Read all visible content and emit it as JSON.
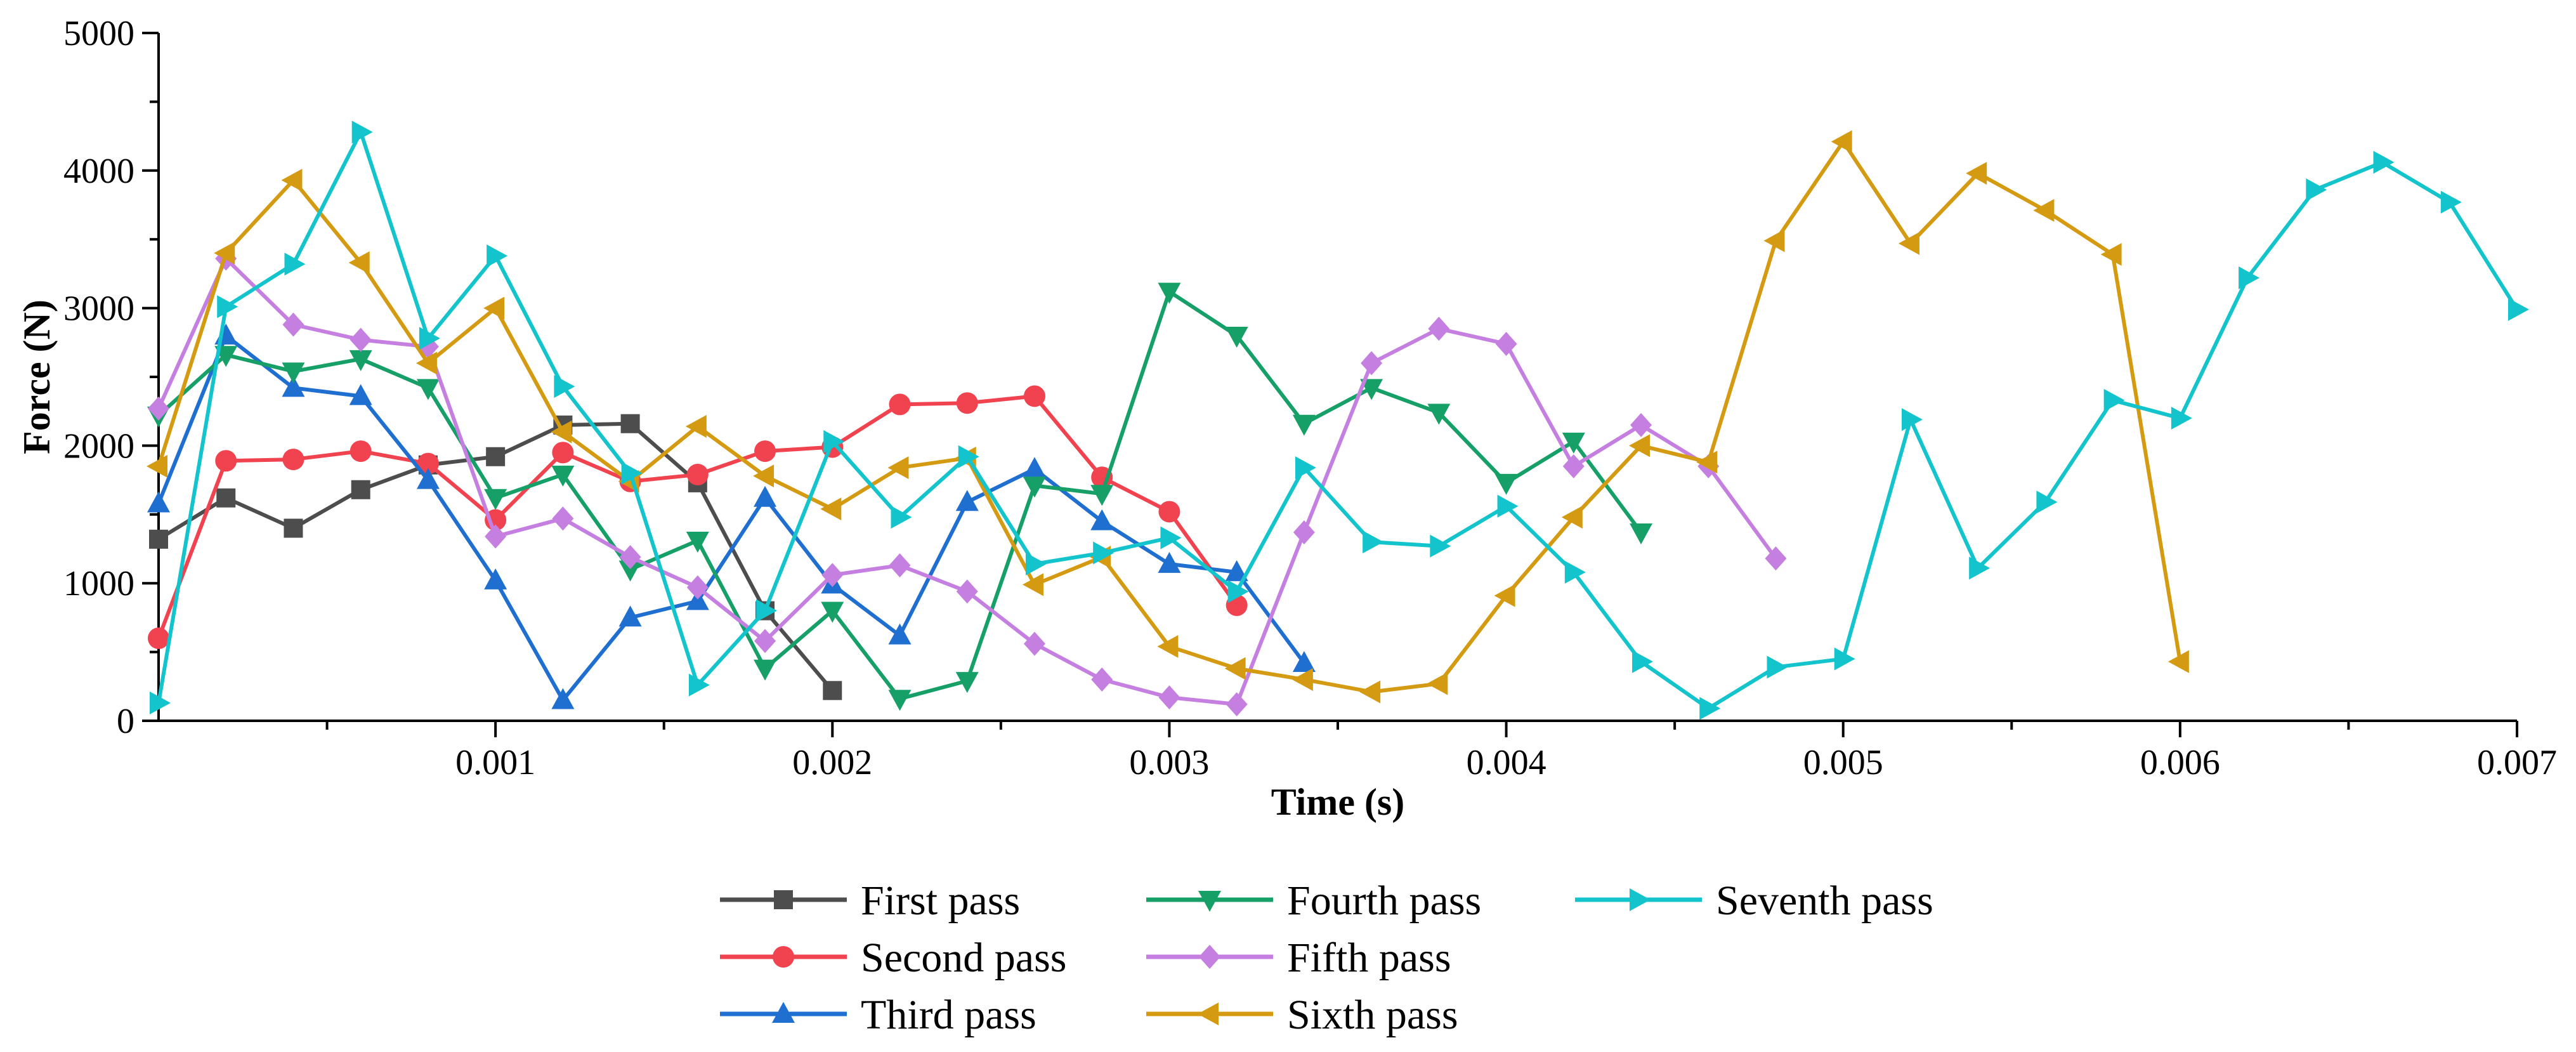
{
  "chart_data": {
    "type": "line",
    "title": "",
    "xlabel": "Time  (s)",
    "ylabel": "Force (N)",
    "xlim": [
      0,
      0.007
    ],
    "ylim": [
      0,
      5000
    ],
    "x_ticks": [
      0.001,
      0.002,
      0.003,
      0.004,
      0.005,
      0.006,
      0.007
    ],
    "x_tick_labels": [
      "0.001",
      "0.002",
      "0.003",
      "0.004",
      "0.005",
      "0.006",
      "0.007"
    ],
    "y_ticks": [
      0,
      1000,
      2000,
      3000,
      4000,
      5000
    ],
    "y_tick_labels": [
      "0",
      "1000",
      "2000",
      "3000",
      "4000",
      "5000"
    ],
    "grid": false,
    "legend_position": "bottom-center",
    "series": [
      {
        "name": "First pass",
        "color": "#4d4d4d",
        "marker": "square",
        "x": [
          0,
          0.0002,
          0.0004,
          0.0006,
          0.0008,
          0.001,
          0.0012,
          0.0014,
          0.0016,
          0.0018,
          0.002
        ],
        "values": [
          1320,
          1620,
          1400,
          1680,
          1860,
          1920,
          2150,
          2160,
          1730,
          800,
          220
        ]
      },
      {
        "name": "Second pass",
        "color": "#f0434f",
        "marker": "circle",
        "x": [
          0,
          0.0002,
          0.0004,
          0.0006,
          0.0008,
          0.001,
          0.0012,
          0.0014,
          0.0016,
          0.0018,
          0.002,
          0.0022,
          0.0024,
          0.0026,
          0.0028,
          0.003,
          0.0032
        ],
        "values": [
          600,
          1890,
          1900,
          1960,
          1870,
          1460,
          1950,
          1740,
          1790,
          1960,
          1990,
          2300,
          2310,
          2360,
          1770,
          1520,
          840
        ]
      },
      {
        "name": "Third pass",
        "color": "#1f6fd1",
        "marker": "triangle-up",
        "x": [
          0,
          0.0002,
          0.0004,
          0.0006,
          0.0008,
          0.001,
          0.0012,
          0.0014,
          0.0016,
          0.0018,
          0.002,
          0.0022,
          0.0024,
          0.0026,
          0.0028,
          0.003,
          0.0032,
          0.0034
        ],
        "values": [
          1580,
          2800,
          2420,
          2360,
          1750,
          1020,
          150,
          750,
          870,
          1620,
          990,
          620,
          1590,
          1830,
          1450,
          1140,
          1080,
          420
        ]
      },
      {
        "name": "Fourth pass",
        "color": "#16a068",
        "marker": "triangle-down",
        "x": [
          0,
          0.0002,
          0.0004,
          0.0006,
          0.0008,
          0.001,
          0.0012,
          0.0014,
          0.0016,
          0.0018,
          0.002,
          0.0022,
          0.0024,
          0.0026,
          0.0028,
          0.003,
          0.0032,
          0.0034,
          0.0036,
          0.0038,
          0.004,
          0.0042,
          0.0044
        ],
        "values": [
          2220,
          2660,
          2540,
          2630,
          2420,
          1620,
          1790,
          1100,
          1310,
          380,
          800,
          160,
          290,
          1710,
          1650,
          3120,
          2800,
          2160,
          2420,
          2240,
          1730,
          2030,
          1370
        ]
      },
      {
        "name": "Fifth pass",
        "color": "#c47fe0",
        "marker": "diamond",
        "x": [
          0,
          0.0002,
          0.0004,
          0.0006,
          0.0008,
          0.001,
          0.0012,
          0.0014,
          0.0016,
          0.0018,
          0.002,
          0.0022,
          0.0024,
          0.0026,
          0.0028,
          0.003,
          0.0032,
          0.0034,
          0.0036,
          0.0038,
          0.004,
          0.0042,
          0.0044,
          0.0046,
          0.0048
        ],
        "values": [
          2270,
          3360,
          2880,
          2770,
          2720,
          1340,
          1470,
          1190,
          970,
          580,
          1060,
          1130,
          940,
          560,
          300,
          170,
          120,
          1370,
          2600,
          2850,
          2740,
          1850,
          2150,
          1850,
          1180
        ]
      },
      {
        "name": "Sixth pass",
        "color": "#d49b12",
        "marker": "triangle-left",
        "x": [
          0,
          0.0002,
          0.0004,
          0.0006,
          0.0008,
          0.001,
          0.0012,
          0.0014,
          0.0016,
          0.0018,
          0.002,
          0.0022,
          0.0024,
          0.0026,
          0.0028,
          0.003,
          0.0032,
          0.0034,
          0.0036,
          0.0038,
          0.004,
          0.0042,
          0.0044,
          0.0046,
          0.0048,
          0.005,
          0.0052,
          0.0054,
          0.0056,
          0.0058,
          0.006
        ],
        "values": [
          1850,
          3400,
          3930,
          3330,
          2600,
          3000,
          2100,
          1740,
          2140,
          1780,
          1540,
          1840,
          1910,
          990,
          1190,
          540,
          380,
          300,
          210,
          270,
          910,
          1480,
          2000,
          1880,
          3490,
          4210,
          3470,
          3980,
          3710,
          3390,
          430
        ]
      },
      {
        "name": "Seventh pass",
        "color": "#14c4cc",
        "marker": "triangle-right",
        "x": [
          0,
          0.0002,
          0.0004,
          0.0006,
          0.0008,
          0.001,
          0.0012,
          0.0014,
          0.0016,
          0.0018,
          0.002,
          0.0022,
          0.0024,
          0.0026,
          0.0028,
          0.003,
          0.0032,
          0.0034,
          0.0036,
          0.0038,
          0.004,
          0.0042,
          0.0044,
          0.0046,
          0.0048,
          0.005,
          0.0052,
          0.0054,
          0.0056,
          0.0058,
          0.006,
          0.0062,
          0.0064,
          0.0066,
          0.0068,
          0.007
        ],
        "values": [
          130,
          3010,
          3320,
          4280,
          2780,
          3380,
          2430,
          1800,
          260,
          800,
          2030,
          1480,
          1920,
          1140,
          1220,
          1330,
          940,
          1840,
          1300,
          1270,
          1560,
          1080,
          430,
          90,
          390,
          450,
          2190,
          1110,
          1590,
          2330,
          2200,
          3220,
          3860,
          4060,
          3770,
          2990
        ]
      }
    ]
  }
}
